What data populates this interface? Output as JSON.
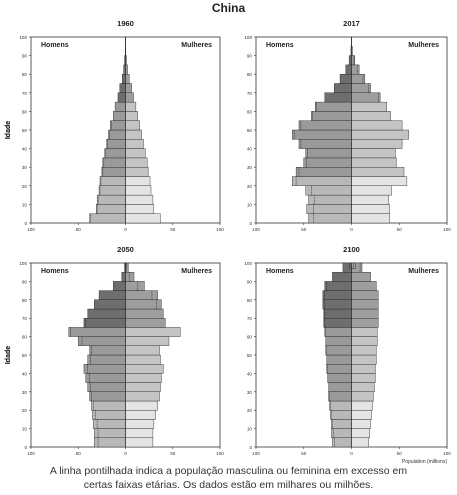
{
  "title": "China",
  "caption": {
    "line1": "A linha pontilhada indica a população masculina ou feminina em excesso em",
    "line2": "certas faixas etárias. Os dados estão em milhares ou milhões."
  },
  "colors": {
    "male_dark": "#6e6e6e",
    "male_mid": "#9a9a9a",
    "male_light": "#b8b8b8",
    "female_dark": "#9e9e9e",
    "female_mid": "#c4c4c4",
    "female_light": "#e4e4e4",
    "outline": "#222222",
    "axis": "#333333"
  },
  "chart_data": [
    {
      "type": "bar",
      "subtype": "population-pyramid",
      "title": "1960",
      "left_label": "Homens",
      "right_label": "Mulheres",
      "ylabel": "Idade",
      "xlabel": "",
      "x_ticks": [
        "100",
        "50",
        "0",
        "50",
        "100"
      ],
      "y_ticks": [
        "0",
        "10",
        "20",
        "30",
        "40",
        "50",
        "60",
        "70",
        "80",
        "90",
        "100"
      ],
      "xlim": [
        -100,
        100
      ],
      "age_groups": [
        "0-4",
        "5-9",
        "10-14",
        "15-19",
        "20-24",
        "25-29",
        "30-34",
        "35-39",
        "40-44",
        "45-49",
        "50-54",
        "55-59",
        "60-64",
        "65-69",
        "70-74",
        "75-79",
        "80-84",
        "85-89",
        "90-94",
        "95-99",
        "100+"
      ],
      "male": [
        38,
        31,
        30,
        28,
        27,
        25,
        24,
        22,
        20,
        18,
        16,
        13,
        11,
        8,
        6,
        3.5,
        2,
        1,
        0.3,
        0.1,
        0
      ],
      "female": [
        37,
        30,
        29,
        27,
        26,
        24,
        23,
        21,
        19,
        17,
        15,
        13,
        11,
        8.5,
        6.5,
        4,
        2.2,
        1,
        0.3,
        0.1,
        0
      ]
    },
    {
      "type": "bar",
      "subtype": "population-pyramid",
      "title": "2017",
      "left_label": "Homens",
      "right_label": "Mulheres",
      "ylabel": "Idade",
      "xlabel": "",
      "x_ticks": [
        "100",
        "50",
        "0",
        "50",
        "100"
      ],
      "y_ticks": [
        "0",
        "10",
        "20",
        "30",
        "40",
        "50",
        "60",
        "70",
        "80",
        "90",
        "100"
      ],
      "xlim": [
        -100,
        100
      ],
      "age_groups": [
        "0-4",
        "5-9",
        "10-14",
        "15-19",
        "20-24",
        "25-29",
        "30-34",
        "35-39",
        "40-44",
        "45-49",
        "50-54",
        "55-59",
        "60-64",
        "65-69",
        "70-74",
        "75-79",
        "80-84",
        "85-89",
        "90-94",
        "95-99",
        "100+"
      ],
      "male": [
        45,
        47,
        45,
        48,
        62,
        58,
        50,
        48,
        55,
        62,
        55,
        42,
        38,
        28,
        18,
        12,
        6,
        2.5,
        0.6,
        0.1,
        0
      ],
      "female": [
        40,
        40,
        39,
        42,
        58,
        55,
        47,
        46,
        53,
        60,
        53,
        41,
        37,
        30,
        20,
        14,
        8,
        3.5,
        1,
        0.2,
        0
      ]
    },
    {
      "type": "bar",
      "subtype": "population-pyramid",
      "title": "2050",
      "left_label": "Homens",
      "right_label": "Mulheres",
      "ylabel": "Idade",
      "xlabel": "",
      "x_ticks": [
        "100",
        "50",
        "0",
        "50",
        "100"
      ],
      "y_ticks": [
        "0",
        "10",
        "20",
        "30",
        "40",
        "50",
        "60",
        "70",
        "80",
        "90",
        "100"
      ],
      "xlim": [
        -100,
        100
      ],
      "age_groups": [
        "0-4",
        "5-9",
        "10-14",
        "15-19",
        "20-24",
        "25-29",
        "30-34",
        "35-39",
        "40-44",
        "45-49",
        "50-54",
        "55-59",
        "60-64",
        "65-69",
        "70-74",
        "75-79",
        "80-84",
        "85-89",
        "90-94",
        "95-99",
        "100+"
      ],
      "male": [
        33,
        33,
        34,
        35,
        36,
        38,
        40,
        42,
        44,
        40,
        38,
        50,
        60,
        44,
        40,
        33,
        28,
        13,
        4,
        1,
        0.2
      ],
      "female": [
        29,
        29,
        30,
        32,
        34,
        36,
        37,
        38,
        40,
        37,
        36,
        46,
        58,
        42,
        40,
        38,
        34,
        20,
        9,
        3,
        0.6
      ]
    },
    {
      "type": "bar",
      "subtype": "population-pyramid",
      "title": "2100",
      "left_label": "Homens",
      "right_label": "Mulheres",
      "ylabel": "Idade",
      "xlabel": "Population (millions)",
      "x_ticks": [
        "100",
        "50",
        "0",
        "50",
        "100"
      ],
      "y_ticks": [
        "0",
        "10",
        "20",
        "30",
        "40",
        "50",
        "60",
        "70",
        "80",
        "90",
        "100"
      ],
      "xlim": [
        -100,
        100
      ],
      "age_groups": [
        "0-4",
        "5-9",
        "10-14",
        "15-19",
        "20-24",
        "25-29",
        "30-34",
        "35-39",
        "40-44",
        "45-49",
        "50-54",
        "55-59",
        "60-64",
        "65-69",
        "70-74",
        "75-79",
        "80-84",
        "85-89",
        "90-94",
        "95-99",
        "100+"
      ],
      "male": [
        20,
        21,
        21,
        22,
        23,
        24,
        24,
        25,
        26,
        26,
        27,
        27,
        28,
        29,
        29,
        30,
        30,
        28,
        20,
        9,
        2
      ],
      "female": [
        18,
        19,
        20,
        21,
        22,
        23,
        24,
        25,
        25,
        26,
        26,
        27,
        27,
        28,
        28,
        28,
        28,
        26,
        20,
        11,
        4
      ]
    }
  ]
}
